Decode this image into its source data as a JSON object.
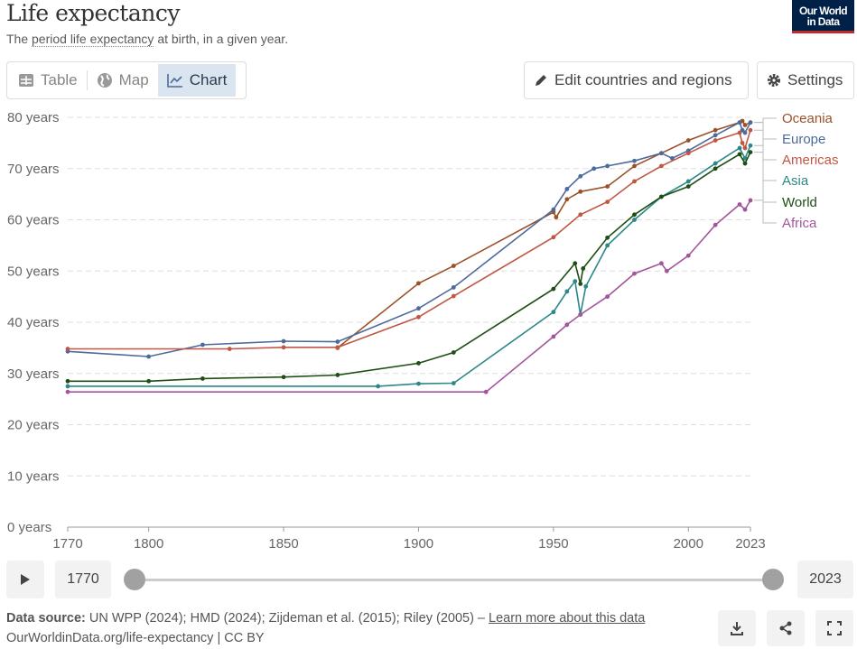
{
  "header": {
    "title": "Life expectancy",
    "subtitle_pre": "The ",
    "subtitle_link": "period life expectancy",
    "subtitle_post": " at birth, in a given year.",
    "logo": "Our World in Data"
  },
  "tabs": [
    {
      "label": "Table",
      "icon": "table-icon"
    },
    {
      "label": "Map",
      "icon": "globe-icon"
    },
    {
      "label": "Chart",
      "icon": "line-chart-icon",
      "active": true
    }
  ],
  "buttons": {
    "edit": "Edit countries and regions",
    "settings": "Settings"
  },
  "timeline": {
    "start": "1770",
    "end": "2023",
    "start_fraction": 0,
    "end_fraction": 1
  },
  "footer": {
    "source_label": "Data source:",
    "source": "UN WPP (2024); HMD (2024); Zijdeman et al. (2015); Riley (2005) –",
    "learn_more": "Learn more about this data",
    "url": "OurWorldinData.org/life-expectancy | CC BY"
  },
  "chart_data": {
    "type": "line",
    "title": "Life expectancy",
    "xlim": [
      1770,
      2023
    ],
    "ylim": [
      0,
      80
    ],
    "x_ticks": [
      1770,
      1800,
      1850,
      1900,
      1950,
      2000,
      2023
    ],
    "y_ticks": [
      0,
      10,
      20,
      30,
      40,
      50,
      60,
      70,
      80
    ],
    "y_tick_labels": [
      "0 years",
      "10 years",
      "20 years",
      "30 years",
      "40 years",
      "50 years",
      "60 years",
      "70 years",
      "80 years"
    ],
    "grid": "horizontal dashed",
    "legend": "right (line-end labels)",
    "series": [
      {
        "name": "Oceania",
        "color": "#9a5129",
        "points": [
          [
            1870,
            35
          ],
          [
            1900,
            47.6
          ],
          [
            1913,
            51
          ],
          [
            1950,
            61.5
          ],
          [
            1951,
            60.5
          ],
          [
            1955,
            64
          ],
          [
            1960,
            65.5
          ],
          [
            1970,
            66.5
          ],
          [
            1980,
            70.5
          ],
          [
            1990,
            73
          ],
          [
            2000,
            75.5
          ],
          [
            2010,
            77.5
          ],
          [
            2019,
            79
          ],
          [
            2020,
            79.3
          ],
          [
            2021,
            78.5
          ],
          [
            2023,
            79
          ]
        ]
      },
      {
        "name": "Europe",
        "color": "#4c6a9c",
        "points": [
          [
            1770,
            34.3
          ],
          [
            1800,
            33.3
          ],
          [
            1820,
            35.6
          ],
          [
            1850,
            36.3
          ],
          [
            1870,
            36.2
          ],
          [
            1900,
            42.7
          ],
          [
            1913,
            46.8
          ],
          [
            1950,
            62
          ],
          [
            1955,
            66
          ],
          [
            1960,
            68.5
          ],
          [
            1965,
            70
          ],
          [
            1970,
            70.5
          ],
          [
            1980,
            71.5
          ],
          [
            1990,
            73
          ],
          [
            1994,
            72
          ],
          [
            2000,
            73.5
          ],
          [
            2010,
            76.5
          ],
          [
            2019,
            79
          ],
          [
            2020,
            77.5
          ],
          [
            2021,
            77
          ],
          [
            2023,
            79
          ]
        ]
      },
      {
        "name": "Americas",
        "color": "#c05744",
        "points": [
          [
            1770,
            34.8
          ],
          [
            1830,
            34.8
          ],
          [
            1850,
            35.1
          ],
          [
            1870,
            35.1
          ],
          [
            1900,
            41
          ],
          [
            1913,
            45.1
          ],
          [
            1950,
            56.6
          ],
          [
            1960,
            61
          ],
          [
            1970,
            63.5
          ],
          [
            1980,
            67.5
          ],
          [
            1990,
            70.5
          ],
          [
            2000,
            73
          ],
          [
            2010,
            75.5
          ],
          [
            2019,
            77
          ],
          [
            2020,
            75
          ],
          [
            2021,
            74
          ],
          [
            2023,
            77.5
          ]
        ]
      },
      {
        "name": "Asia",
        "color": "#2c8788",
        "points": [
          [
            1770,
            27.5
          ],
          [
            1885,
            27.5
          ],
          [
            1900,
            28
          ],
          [
            1913,
            28.1
          ],
          [
            1950,
            42
          ],
          [
            1955,
            46
          ],
          [
            1958,
            48
          ],
          [
            1960,
            41.5
          ],
          [
            1962,
            47
          ],
          [
            1970,
            55
          ],
          [
            1980,
            60
          ],
          [
            1990,
            64.5
          ],
          [
            2000,
            67.5
          ],
          [
            2010,
            71
          ],
          [
            2019,
            74
          ],
          [
            2021,
            72
          ],
          [
            2023,
            74.5
          ]
        ]
      },
      {
        "name": "World",
        "color": "#1e4e14",
        "points": [
          [
            1770,
            28.5
          ],
          [
            1800,
            28.5
          ],
          [
            1820,
            29
          ],
          [
            1850,
            29.3
          ],
          [
            1870,
            29.7
          ],
          [
            1900,
            32
          ],
          [
            1913,
            34.1
          ],
          [
            1950,
            46.5
          ],
          [
            1958,
            51.5
          ],
          [
            1960,
            47.5
          ],
          [
            1961,
            50.5
          ],
          [
            1970,
            56.5
          ],
          [
            1980,
            61
          ],
          [
            1990,
            64.5
          ],
          [
            2000,
            66.5
          ],
          [
            2010,
            70
          ],
          [
            2019,
            72.8
          ],
          [
            2021,
            71
          ],
          [
            2023,
            73.2
          ]
        ]
      },
      {
        "name": "Africa",
        "color": "#a2559c",
        "points": [
          [
            1770,
            26.4
          ],
          [
            1925,
            26.4
          ],
          [
            1950,
            37.2
          ],
          [
            1955,
            39.5
          ],
          [
            1960,
            41.5
          ],
          [
            1970,
            45
          ],
          [
            1980,
            49.5
          ],
          [
            1990,
            51.5
          ],
          [
            1992,
            50
          ],
          [
            2000,
            53
          ],
          [
            2010,
            59
          ],
          [
            2019,
            63
          ],
          [
            2021,
            62
          ],
          [
            2023,
            63.8
          ]
        ]
      }
    ]
  }
}
